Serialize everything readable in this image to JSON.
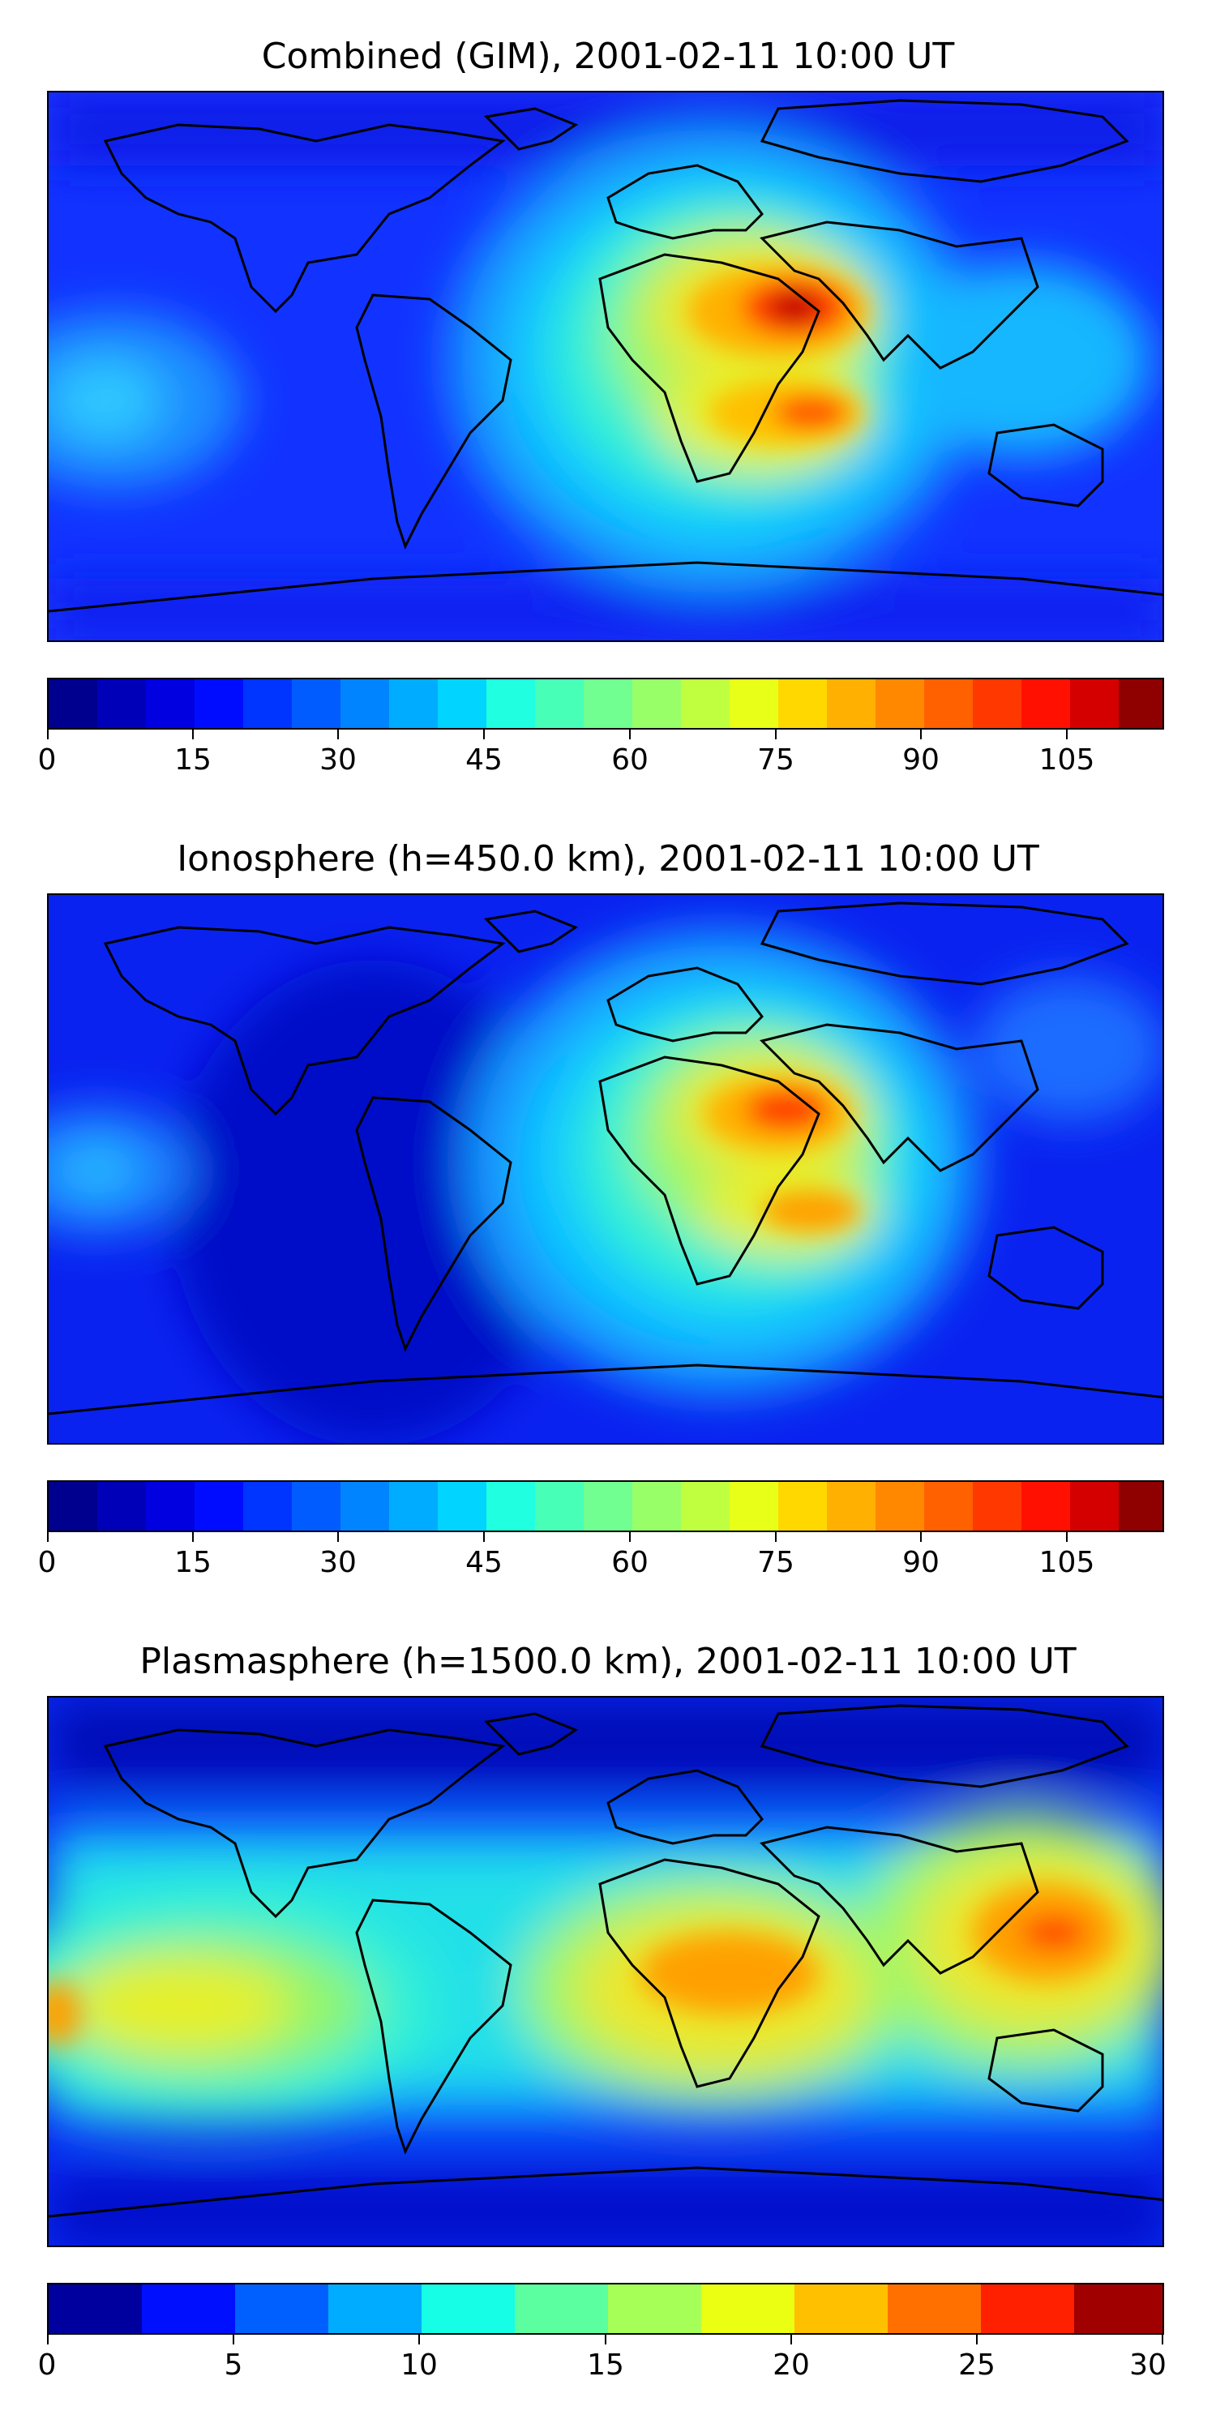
{
  "panels": [
    {
      "title": "Combined (GIM), 2001-02-11 10:00 UT",
      "colorbar": {
        "min": 0,
        "max": 115,
        "step": 5,
        "ticks": [
          "0",
          "15",
          "30",
          "45",
          "60",
          "75",
          "90",
          "105"
        ],
        "tick_values": [
          0,
          15,
          30,
          45,
          60,
          75,
          90,
          105
        ]
      }
    },
    {
      "title": "Ionosphere  (h=450.0 km), 2001-02-11 10:00 UT",
      "colorbar": {
        "min": 0,
        "max": 115,
        "step": 5,
        "ticks": [
          "0",
          "15",
          "30",
          "45",
          "60",
          "75",
          "90",
          "105"
        ],
        "tick_values": [
          0,
          15,
          30,
          45,
          60,
          75,
          90,
          105
        ]
      }
    },
    {
      "title": "Plasmasphere (h=1500.0 km), 2001-02-11 10:00 UT",
      "colorbar": {
        "min": 0,
        "max": 30,
        "step": 2.5,
        "ticks": [
          "0",
          "5",
          "10",
          "15",
          "20",
          "25",
          "30"
        ],
        "tick_values": [
          0,
          5,
          10,
          15,
          20,
          25,
          30
        ]
      }
    }
  ],
  "colormap": "jet",
  "coastline_color": "#000000"
}
